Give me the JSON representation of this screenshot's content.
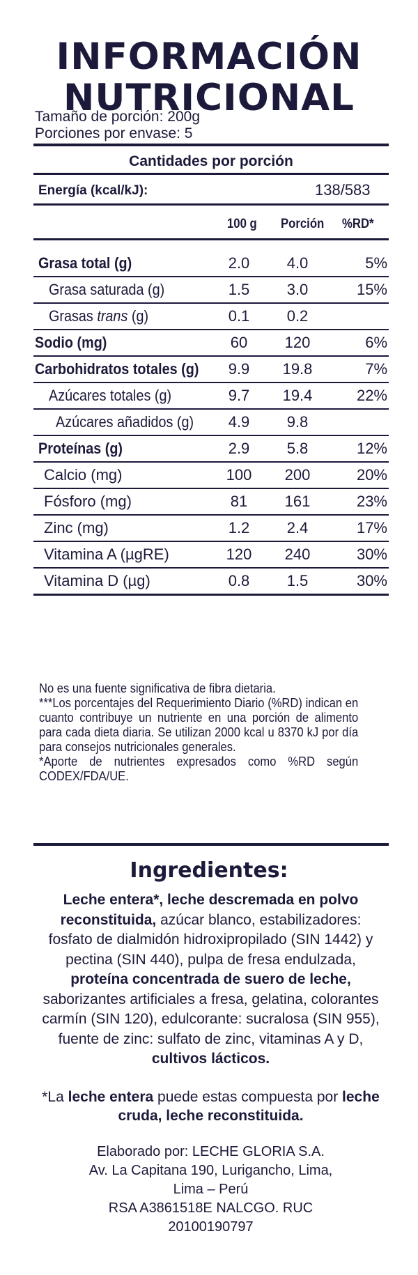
{
  "title": {
    "line1": "INFORMACIÓN",
    "line2": "NUTRICIONAL"
  },
  "serving": {
    "size": "Tamaño de porción: 200g",
    "per_container": "Porciones por envase: 5"
  },
  "amounts_header": "Cantidades por porción",
  "energy": {
    "label": "Energía (kcal/kJ):",
    "value": "138/583"
  },
  "columns": {
    "c100": "100 g",
    "portion": "Porción",
    "rd": "%RD*"
  },
  "rows": [
    {
      "label": "Grasa total (g)",
      "v100": "2.0",
      "portion": "4.0",
      "rd": "5%"
    },
    {
      "label": "Grasa saturada (g)",
      "v100": "1.5",
      "portion": "3.0",
      "rd": "15%"
    },
    {
      "label_pre": "Grasas ",
      "label_em": "trans",
      "label_post": " (g)",
      "v100": "0.1",
      "portion": "0.2",
      "rd": ""
    },
    {
      "label": "Sodio (mg)",
      "v100": "60",
      "portion": "120",
      "rd": "6%"
    },
    {
      "label": "Carbohidratos totales (g)",
      "v100": "9.9",
      "portion": "19.8",
      "rd": "7%"
    },
    {
      "label": "Azúcares totales (g)",
      "v100": "9.7",
      "portion": "19.4",
      "rd": "22%"
    },
    {
      "label": "Azúcares añadidos (g)",
      "v100": "4.9",
      "portion": "9.8",
      "rd": ""
    },
    {
      "label": "Proteínas (g)",
      "v100": "2.9",
      "portion": "5.8",
      "rd": "12%"
    },
    {
      "label": "Calcio (mg)",
      "v100": "100",
      "portion": "200",
      "rd": "20%"
    },
    {
      "label": "Fósforo (mg)",
      "v100": "81",
      "portion": "161",
      "rd": "23%"
    },
    {
      "label": "Zinc (mg)",
      "v100": "1.2",
      "portion": "2.4",
      "rd": "17%"
    },
    {
      "label": "Vitamina A (µgRE)",
      "v100": "120",
      "portion": "240",
      "rd": "30%"
    },
    {
      "label": "Vitamina D (µg)",
      "v100": "0.8",
      "portion": "1.5",
      "rd": "30%"
    }
  ],
  "notes": {
    "fiber": "No es una fuente significativa de fibra dietaria.",
    "rd": "***Los porcentajes del Requerimiento Diario (%RD) indican en cuanto contribuye un nutriente en una porción de alimento para cada dieta diaria. Se utilizan 2000 kcal u 8370 kJ por día para consejos nutricionales generales.",
    "codex": "*Aporte de nutrientes expresados como %RD según CODEX/FDA/UE."
  },
  "ingredients": {
    "title": "Ingredientes:",
    "b1": "Leche entera*, leche descremada en polvo reconstituida,",
    "t1": " azúcar blanco, estabilizadores: fosfato de dialmidón hidroxipropilado (SIN 1442) y pectina (SIN 440), pulpa de fresa endulzada, ",
    "b2": "proteína concentrada de suero de leche,",
    "t2": " saborizantes artificiales a fresa, gelatina, colorantes carmín (SIN 120), edulcorante: sucralosa (SIN 955), fuente de zinc: sulfato de zinc, vitaminas A y D, ",
    "b3": "cultivos lácticos."
  },
  "whole_milk_note": {
    "pre": "*La ",
    "b1": "leche entera",
    "mid": " puede estas compuesta por ",
    "b2": "leche cruda, leche reconstituida."
  },
  "manufacturer": {
    "line1": "Elaborado por: LECHE GLORIA S.A.",
    "line2": "Av. La Capitana 190, Lurigancho, Lima,",
    "line3": "Lima – Perú",
    "line4": "RSA A3861518E NALCGO. RUC",
    "line5": "20100190797"
  }
}
